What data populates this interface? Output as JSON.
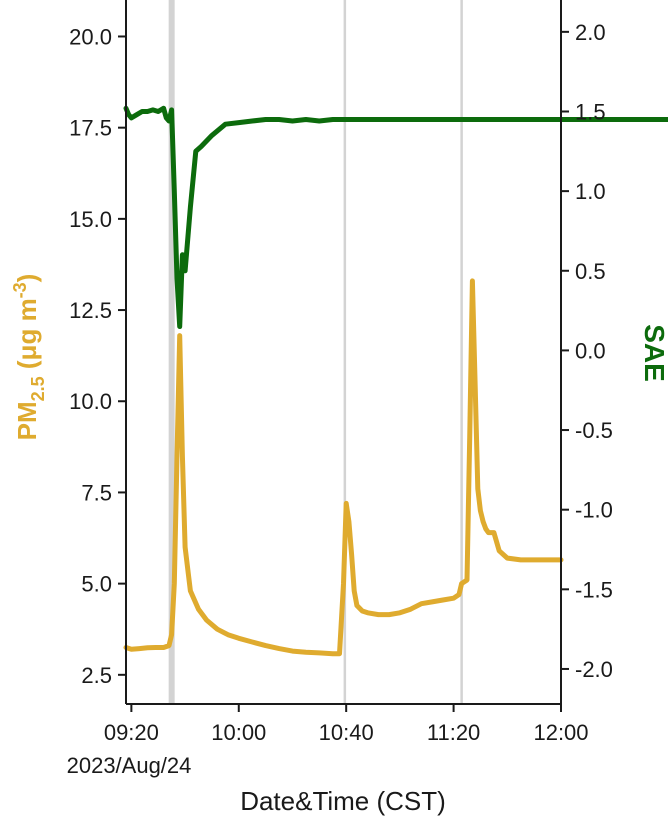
{
  "chart_data": {
    "type": "line",
    "title": "",
    "xlabel": "Date&Time (CST)",
    "x_date_label": "2023/Aug/24",
    "x_ticks": [
      "09:20",
      "10:00",
      "10:40",
      "11:20",
      "12:00"
    ],
    "x_tick_minutes": [
      560,
      600,
      640,
      680,
      720
    ],
    "xlim_minutes": [
      558,
      720
    ],
    "ylabel_left_parts": {
      "base": "PM",
      "sub": "2.5",
      "unit_pre": " (μg m",
      "sup": "-3",
      "unit_post": ")"
    },
    "ylabel_right": "SAE",
    "ylim_left": [
      1.7,
      21.0
    ],
    "ylim_right": [
      -2.22,
      2.2
    ],
    "y_ticks_left": [
      "2.5",
      "5.0",
      "7.5",
      "10.0",
      "12.5",
      "15.0",
      "17.5",
      "20.0"
    ],
    "y_ticks_right": [
      "-2.0",
      "-1.5",
      "-1.0",
      "-0.5",
      "0.0",
      "0.5",
      "1.0",
      "1.5",
      "2.0"
    ],
    "vlines_minutes": [
      575,
      639.5,
      683
    ],
    "colors": {
      "pm25": "#dfab2f",
      "sae": "#0c6b0c",
      "vline": "#d3d3d3"
    },
    "series": [
      {
        "axis": "left",
        "x": [
          558,
          560,
          563,
          566,
          569,
          572,
          574,
          575,
          576,
          577,
          578,
          579,
          580,
          582,
          585,
          588,
          592,
          596,
          600,
          605,
          610,
          615,
          620,
          625,
          630,
          635,
          637.5,
          639,
          640,
          641,
          642,
          643,
          644,
          646,
          648,
          652,
          656,
          660,
          664,
          668,
          672,
          676,
          680,
          682,
          683,
          684,
          685,
          686,
          687,
          688,
          689,
          690,
          691,
          692,
          693,
          695,
          697,
          700,
          705,
          710,
          720
        ],
        "y": [
          3.25,
          3.2,
          3.22,
          3.24,
          3.25,
          3.25,
          3.3,
          3.6,
          5.0,
          8.5,
          11.8,
          8.5,
          6.0,
          4.8,
          4.3,
          4.0,
          3.75,
          3.6,
          3.5,
          3.4,
          3.3,
          3.22,
          3.15,
          3.12,
          3.1,
          3.08,
          3.08,
          5.0,
          7.2,
          6.7,
          5.8,
          4.8,
          4.4,
          4.25,
          4.2,
          4.15,
          4.15,
          4.2,
          4.3,
          4.45,
          4.5,
          4.55,
          4.6,
          4.7,
          5.0,
          5.05,
          5.1,
          9.0,
          13.3,
          10.5,
          7.6,
          7.0,
          6.7,
          6.5,
          6.4,
          6.4,
          5.9,
          5.7,
          5.65,
          5.65,
          5.65
        ]
      },
      {
        "axis": "right",
        "x": [
          558,
          559,
          560,
          562,
          564,
          566,
          568,
          570,
          572,
          573,
          574,
          575,
          576,
          577,
          578,
          579,
          580,
          582,
          584,
          586,
          590,
          595,
          600,
          605,
          610,
          615,
          620,
          625,
          630,
          635,
          637.5,
          639,
          640,
          641,
          642,
          643,
          644,
          646,
          648,
          650,
          652,
          655,
          658,
          662,
          666,
          670,
          674,
          676,
          677,
          678,
          679,
          681,
          683,
          686,
          690,
          694,
          698,
          702,
          706,
          710,
          712,
          714,
          716,
          717,
          718,
          719,
          720,
          721,
          722,
          723,
          724,
          725,
          726,
          728,
          729,
          730,
          731,
          732,
          733,
          735,
          737,
          740,
          745,
          750,
          755,
          760
        ],
        "y": [
          1.52,
          1.48,
          1.46,
          1.48,
          1.5,
          1.5,
          1.51,
          1.5,
          1.52,
          1.46,
          1.44,
          1.51,
          1.0,
          0.45,
          0.15,
          0.6,
          0.5,
          0.9,
          1.25,
          1.28,
          1.35,
          1.42,
          1.43,
          1.44,
          1.45,
          1.45,
          1.44,
          1.45,
          1.44,
          1.45,
          1.45,
          1.45,
          1.45,
          1.45,
          1.45,
          1.45,
          1.45,
          1.45,
          1.45,
          1.45,
          1.45,
          1.45,
          1.45,
          1.45,
          1.45,
          1.45,
          1.45,
          1.45,
          1.45,
          1.45,
          1.45,
          1.45,
          1.45,
          1.45,
          1.45,
          1.45,
          1.45,
          1.45,
          1.45,
          1.45,
          1.45,
          1.45,
          1.45,
          1.45,
          1.45,
          1.45,
          1.45,
          1.45,
          1.45,
          1.45,
          1.45,
          1.45,
          1.45,
          1.45,
          1.45,
          1.45,
          1.45,
          1.45,
          1.45,
          1.45,
          1.45,
          1.45,
          1.45,
          1.45,
          1.45,
          1.45
        ]
      }
    ]
  }
}
